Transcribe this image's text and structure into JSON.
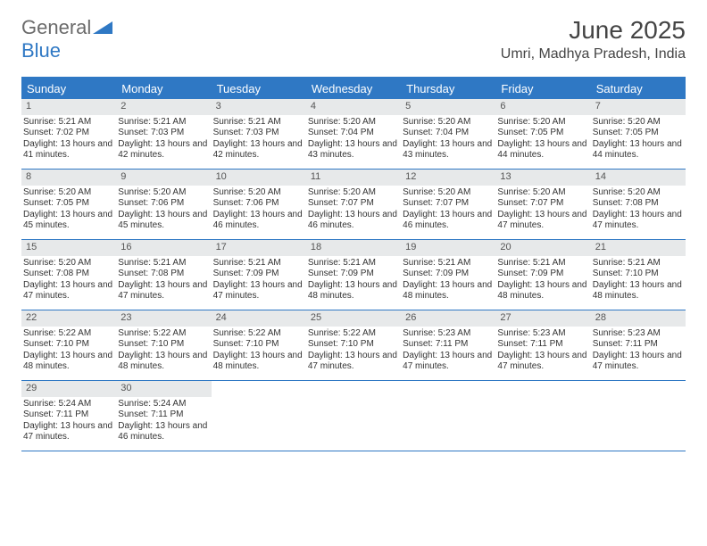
{
  "logo": {
    "word1": "General",
    "word2": "Blue"
  },
  "title": "June 2025",
  "location": "Umri, Madhya Pradesh, India",
  "colors": {
    "header_bg": "#2f78c4",
    "header_text": "#ffffff",
    "daynum_bg": "#e7e9ea",
    "daynum_text": "#555555",
    "border": "#2f78c4",
    "body_text": "#333333",
    "page_bg": "#ffffff",
    "logo_gray": "#6b6b6b",
    "logo_blue": "#2f78c4"
  },
  "day_names": [
    "Sunday",
    "Monday",
    "Tuesday",
    "Wednesday",
    "Thursday",
    "Friday",
    "Saturday"
  ],
  "weeks": [
    [
      {
        "d": "1",
        "sr": "5:21 AM",
        "ss": "7:02 PM",
        "dl": "13 hours and 41 minutes."
      },
      {
        "d": "2",
        "sr": "5:21 AM",
        "ss": "7:03 PM",
        "dl": "13 hours and 42 minutes."
      },
      {
        "d": "3",
        "sr": "5:21 AM",
        "ss": "7:03 PM",
        "dl": "13 hours and 42 minutes."
      },
      {
        "d": "4",
        "sr": "5:20 AM",
        "ss": "7:04 PM",
        "dl": "13 hours and 43 minutes."
      },
      {
        "d": "5",
        "sr": "5:20 AM",
        "ss": "7:04 PM",
        "dl": "13 hours and 43 minutes."
      },
      {
        "d": "6",
        "sr": "5:20 AM",
        "ss": "7:05 PM",
        "dl": "13 hours and 44 minutes."
      },
      {
        "d": "7",
        "sr": "5:20 AM",
        "ss": "7:05 PM",
        "dl": "13 hours and 44 minutes."
      }
    ],
    [
      {
        "d": "8",
        "sr": "5:20 AM",
        "ss": "7:05 PM",
        "dl": "13 hours and 45 minutes."
      },
      {
        "d": "9",
        "sr": "5:20 AM",
        "ss": "7:06 PM",
        "dl": "13 hours and 45 minutes."
      },
      {
        "d": "10",
        "sr": "5:20 AM",
        "ss": "7:06 PM",
        "dl": "13 hours and 46 minutes."
      },
      {
        "d": "11",
        "sr": "5:20 AM",
        "ss": "7:07 PM",
        "dl": "13 hours and 46 minutes."
      },
      {
        "d": "12",
        "sr": "5:20 AM",
        "ss": "7:07 PM",
        "dl": "13 hours and 46 minutes."
      },
      {
        "d": "13",
        "sr": "5:20 AM",
        "ss": "7:07 PM",
        "dl": "13 hours and 47 minutes."
      },
      {
        "d": "14",
        "sr": "5:20 AM",
        "ss": "7:08 PM",
        "dl": "13 hours and 47 minutes."
      }
    ],
    [
      {
        "d": "15",
        "sr": "5:20 AM",
        "ss": "7:08 PM",
        "dl": "13 hours and 47 minutes."
      },
      {
        "d": "16",
        "sr": "5:21 AM",
        "ss": "7:08 PM",
        "dl": "13 hours and 47 minutes."
      },
      {
        "d": "17",
        "sr": "5:21 AM",
        "ss": "7:09 PM",
        "dl": "13 hours and 47 minutes."
      },
      {
        "d": "18",
        "sr": "5:21 AM",
        "ss": "7:09 PM",
        "dl": "13 hours and 48 minutes."
      },
      {
        "d": "19",
        "sr": "5:21 AM",
        "ss": "7:09 PM",
        "dl": "13 hours and 48 minutes."
      },
      {
        "d": "20",
        "sr": "5:21 AM",
        "ss": "7:09 PM",
        "dl": "13 hours and 48 minutes."
      },
      {
        "d": "21",
        "sr": "5:21 AM",
        "ss": "7:10 PM",
        "dl": "13 hours and 48 minutes."
      }
    ],
    [
      {
        "d": "22",
        "sr": "5:22 AM",
        "ss": "7:10 PM",
        "dl": "13 hours and 48 minutes."
      },
      {
        "d": "23",
        "sr": "5:22 AM",
        "ss": "7:10 PM",
        "dl": "13 hours and 48 minutes."
      },
      {
        "d": "24",
        "sr": "5:22 AM",
        "ss": "7:10 PM",
        "dl": "13 hours and 48 minutes."
      },
      {
        "d": "25",
        "sr": "5:22 AM",
        "ss": "7:10 PM",
        "dl": "13 hours and 47 minutes."
      },
      {
        "d": "26",
        "sr": "5:23 AM",
        "ss": "7:11 PM",
        "dl": "13 hours and 47 minutes."
      },
      {
        "d": "27",
        "sr": "5:23 AM",
        "ss": "7:11 PM",
        "dl": "13 hours and 47 minutes."
      },
      {
        "d": "28",
        "sr": "5:23 AM",
        "ss": "7:11 PM",
        "dl": "13 hours and 47 minutes."
      }
    ],
    [
      {
        "d": "29",
        "sr": "5:24 AM",
        "ss": "7:11 PM",
        "dl": "13 hours and 47 minutes."
      },
      {
        "d": "30",
        "sr": "5:24 AM",
        "ss": "7:11 PM",
        "dl": "13 hours and 46 minutes."
      },
      null,
      null,
      null,
      null,
      null
    ]
  ],
  "labels": {
    "sunrise": "Sunrise:",
    "sunset": "Sunset:",
    "daylight": "Daylight:"
  }
}
